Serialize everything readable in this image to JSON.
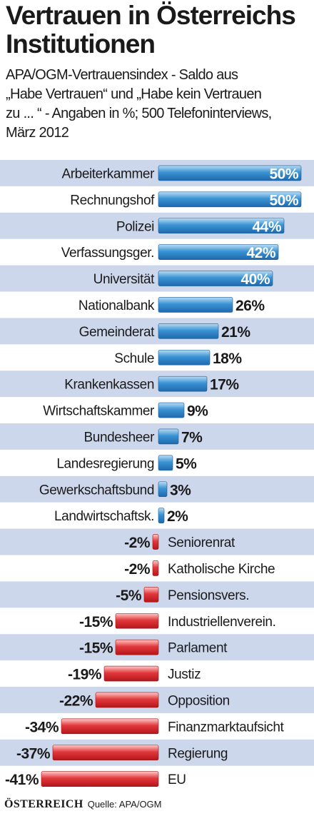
{
  "title_line1": "Vertrauen in Österreichs",
  "title_line2": "Institutionen",
  "subtitle_lines": [
    "APA/OGM-Vertrauensindex - Saldo aus",
    "„Habe Vertrauen“ und „Habe kein Vertrauen",
    "zu ... “ - Angaben in %; 500 Telefoninterviews,",
    "März 2012"
  ],
  "brand": "ÖSTERREICH",
  "source": "Quelle: APA/OGM",
  "chart_data": {
    "type": "bar",
    "orientation": "horizontal",
    "categories": [
      "Arbeiterkammer",
      "Rechnungshof",
      "Polizei",
      "Verfassungsger.",
      "Universität",
      "Nationalbank",
      "Gemeinderat",
      "Schule",
      "Krankenkassen",
      "Wirtschaftskammer",
      "Bundesheer",
      "Landesregierung",
      "Gewerkschaftsbund",
      "Landwirtschaftsk.",
      "Seniorenrat",
      "Katholische Kirche",
      "Pensionsvers.",
      "Industriellenverein.",
      "Parlament",
      "Justiz",
      "Opposition",
      "Finanzmarktaufsicht",
      "Regierung",
      "EU"
    ],
    "values": [
      50,
      50,
      44,
      42,
      40,
      26,
      21,
      18,
      17,
      9,
      7,
      5,
      3,
      2,
      -2,
      -2,
      -5,
      -15,
      -15,
      -19,
      -22,
      -34,
      -37,
      -41
    ],
    "value_labels": [
      "50%",
      "50%",
      "44%",
      "42%",
      "40%",
      "26%",
      "21%",
      "18%",
      "17%",
      "9%",
      "7%",
      "5%",
      "3%",
      "2%",
      "-2%",
      "-2%",
      "-5%",
      "-15%",
      "-15%",
      "-19%",
      "-22%",
      "-34%",
      "-37%",
      "-41%"
    ],
    "colors": {
      "positive": "#2f86c8",
      "positive_light": "#b9dcf3",
      "negative": "#d8262b",
      "negative_light": "#ffc9c7",
      "stripe": "#cdd7ec"
    }
  }
}
